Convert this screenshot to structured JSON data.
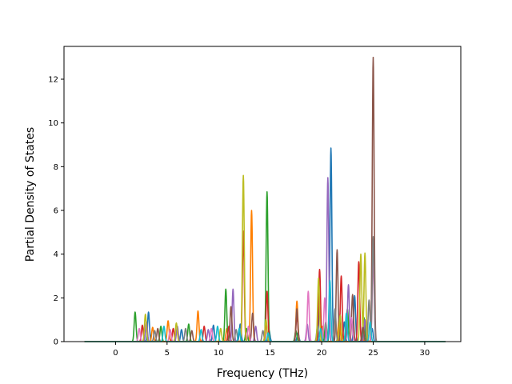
{
  "chart_data": {
    "type": "line",
    "title": "",
    "xlabel": "Frequency (THz)",
    "ylabel": "Partial Density of States",
    "xlim": [
      -5.0,
      33.5
    ],
    "ylim": [
      0,
      13.5
    ],
    "x_ticks": [
      0,
      5,
      10,
      15,
      20,
      25,
      30
    ],
    "y_ticks": [
      0,
      2,
      4,
      6,
      8,
      10,
      12
    ],
    "grid": false,
    "legend": "none",
    "x_start": -3.0,
    "x_end": 32.0,
    "series": [
      {
        "color": "#1f77b4",
        "peaks": [
          [
            3.2,
            1.35
          ],
          [
            6.4,
            0.55
          ],
          [
            9.5,
            0.75
          ],
          [
            12.1,
            0.8
          ],
          [
            14.9,
            0.5
          ],
          [
            17.7,
            0.4
          ],
          [
            19.8,
            1.6
          ],
          [
            20.9,
            8.85
          ],
          [
            22.2,
            0.9
          ],
          [
            23.2,
            2.1
          ],
          [
            24.9,
            0.6
          ]
        ]
      },
      {
        "color": "#ff7f00",
        "peaks": [
          [
            3.6,
            0.65
          ],
          [
            5.1,
            0.95
          ],
          [
            8.0,
            1.4
          ],
          [
            10.8,
            0.6
          ],
          [
            13.2,
            6.0
          ],
          [
            14.6,
            0.9
          ],
          [
            17.6,
            1.85
          ],
          [
            20.1,
            0.7
          ],
          [
            21.7,
            1.2
          ],
          [
            24.3,
            0.9
          ]
        ]
      },
      {
        "color": "#2ca02c",
        "peaks": [
          [
            1.9,
            1.35
          ],
          [
            4.4,
            0.7
          ],
          [
            7.1,
            0.8
          ],
          [
            10.7,
            2.4
          ],
          [
            12.7,
            0.6
          ],
          [
            14.7,
            6.85
          ],
          [
            17.5,
            0.5
          ],
          [
            20.4,
            0.9
          ],
          [
            22.5,
            1.5
          ],
          [
            24.1,
            1.1
          ]
        ]
      },
      {
        "color": "#d62728",
        "peaks": [
          [
            2.6,
            0.75
          ],
          [
            5.6,
            0.6
          ],
          [
            8.6,
            0.7
          ],
          [
            11.0,
            0.7
          ],
          [
            12.4,
            5.05
          ],
          [
            14.7,
            2.3
          ],
          [
            17.6,
            1.2
          ],
          [
            19.8,
            3.3
          ],
          [
            21.9,
            3.0
          ],
          [
            23.6,
            3.65
          ]
        ]
      },
      {
        "color": "#9467bd",
        "peaks": [
          [
            3.0,
            0.9
          ],
          [
            6.0,
            0.7
          ],
          [
            9.0,
            0.55
          ],
          [
            11.4,
            2.4
          ],
          [
            13.6,
            0.7
          ],
          [
            18.6,
            0.8
          ],
          [
            20.6,
            7.5
          ],
          [
            22.6,
            2.6
          ],
          [
            24.2,
            1.0
          ]
        ]
      },
      {
        "color": "#8c564b",
        "peaks": [
          [
            4.1,
            0.6
          ],
          [
            7.4,
            0.5
          ],
          [
            11.2,
            1.6
          ],
          [
            13.3,
            1.3
          ],
          [
            17.6,
            1.5
          ],
          [
            21.5,
            4.2
          ],
          [
            23.0,
            2.15
          ],
          [
            24.0,
            0.7
          ],
          [
            25.0,
            13.0
          ]
        ]
      },
      {
        "color": "#e377c2",
        "peaks": [
          [
            2.3,
            0.6
          ],
          [
            5.3,
            0.55
          ],
          [
            9.3,
            0.6
          ],
          [
            12.9,
            0.7
          ],
          [
            18.7,
            2.3
          ],
          [
            20.3,
            2.0
          ],
          [
            22.9,
            1.1
          ],
          [
            25.0,
            3.8
          ]
        ]
      },
      {
        "color": "#7f7f7f",
        "peaks": [
          [
            3.8,
            0.5
          ],
          [
            6.8,
            0.6
          ],
          [
            11.7,
            0.55
          ],
          [
            14.3,
            0.5
          ],
          [
            19.6,
            0.7
          ],
          [
            21.3,
            1.5
          ],
          [
            24.6,
            1.9
          ],
          [
            25.0,
            4.8
          ]
        ]
      },
      {
        "color": "#bcbd22",
        "peaks": [
          [
            2.9,
            1.25
          ],
          [
            5.9,
            0.85
          ],
          [
            10.2,
            0.6
          ],
          [
            12.4,
            7.6
          ],
          [
            14.6,
            1.0
          ],
          [
            19.7,
            2.9
          ],
          [
            21.8,
            1.2
          ],
          [
            23.8,
            4.0
          ],
          [
            24.2,
            4.05
          ]
        ]
      },
      {
        "color": "#17becf",
        "peaks": [
          [
            4.7,
            0.7
          ],
          [
            8.3,
            0.55
          ],
          [
            9.9,
            0.7
          ],
          [
            12.0,
            0.6
          ],
          [
            14.8,
            0.4
          ],
          [
            19.9,
            0.6
          ],
          [
            20.8,
            2.8
          ],
          [
            22.4,
            1.3
          ],
          [
            24.7,
            0.9
          ]
        ]
      }
    ]
  }
}
